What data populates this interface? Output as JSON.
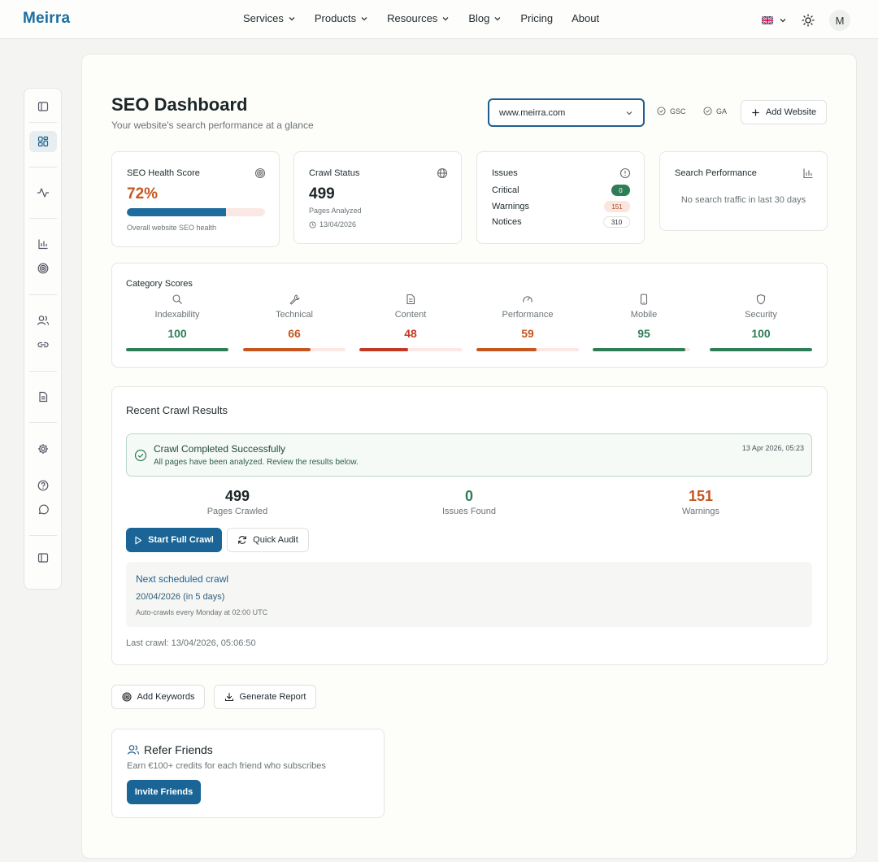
{
  "brand": "Meirra",
  "nav": {
    "items": [
      {
        "label": "Services",
        "has_dropdown": true
      },
      {
        "label": "Products",
        "has_dropdown": true
      },
      {
        "label": "Resources",
        "has_dropdown": true
      },
      {
        "label": "Blog",
        "has_dropdown": true
      },
      {
        "label": "Pricing",
        "has_dropdown": false
      },
      {
        "label": "About",
        "has_dropdown": false
      }
    ],
    "avatar_initial": "M",
    "language_icon": "uk-flag-icon",
    "theme_icon": "sun-icon"
  },
  "sidebar": {
    "icons": [
      "sidebar-panel-icon",
      "dashboard-grid-icon",
      "activity-icon",
      "bar-chart-icon",
      "target-icon",
      "users-icon",
      "link-icon",
      "document-icon",
      "settings-icon",
      "help-icon",
      "chat-icon",
      "collapse-panel-icon"
    ],
    "active": "dashboard-grid-icon"
  },
  "header": {
    "title": "SEO Dashboard",
    "subtitle": "Your website's search performance at a glance",
    "site_select": "www.meirra.com",
    "gsc_label": "GSC",
    "ga_label": "GA",
    "add_website_label": "Add Website"
  },
  "health": {
    "title": "SEO Health Score",
    "value": "72%",
    "progress": 0.72,
    "caption": "Overall website SEO health"
  },
  "crawl_status": {
    "title": "Crawl Status",
    "value": "499",
    "caption": "Pages Analyzed",
    "date": "13/04/2026"
  },
  "issues": {
    "title": "Issues",
    "rows": [
      {
        "label": "Critical",
        "count": "0"
      },
      {
        "label": "Warnings",
        "count": "151"
      },
      {
        "label": "Notices",
        "count": "310"
      }
    ]
  },
  "search_perf": {
    "title": "Search Performance",
    "empty_text": "No search traffic in last 30 days"
  },
  "categories": {
    "title": "Category Scores",
    "items": [
      {
        "name": "Indexability",
        "value": "100",
        "score": 100,
        "color": "#2f7d57",
        "icon": "search-icon"
      },
      {
        "name": "Technical",
        "value": "66",
        "score": 66,
        "color": "#c5561f",
        "icon": "wrench-icon"
      },
      {
        "name": "Content",
        "value": "48",
        "score": 48,
        "color": "#c23a24",
        "icon": "file-text-icon"
      },
      {
        "name": "Performance",
        "value": "59",
        "score": 59,
        "color": "#c5561f",
        "icon": "gauge-icon"
      },
      {
        "name": "Mobile",
        "value": "95",
        "score": 95,
        "color": "#2f7d57",
        "icon": "smartphone-icon"
      },
      {
        "name": "Security",
        "value": "100",
        "score": 100,
        "color": "#2f7d57",
        "icon": "shield-icon"
      }
    ]
  },
  "crawl": {
    "title": "Recent Crawl Results",
    "banner_title": "Crawl Completed Successfully",
    "banner_text": "All pages have been analyzed. Review the results below.",
    "banner_time": "13 Apr 2026, 05:23",
    "stats": [
      {
        "value": "499",
        "label": "Pages Crawled",
        "color": "#1c2528"
      },
      {
        "value": "0",
        "label": "Issues Found",
        "color": "#2f7d57"
      },
      {
        "value": "151",
        "label": "Warnings",
        "color": "#c5561f"
      }
    ],
    "start_label": "Start Full Crawl",
    "audit_label": "Quick Audit",
    "next_title": "Next scheduled crawl",
    "next_date": "20/04/2026 (in 5 days)",
    "next_note": "Auto-crawls every Monday at 02:00 UTC",
    "last_crawl": "Last crawl: 13/04/2026, 05:06:50"
  },
  "actions": {
    "keywords_label": "Add Keywords",
    "report_label": "Generate Report"
  },
  "refer": {
    "title": "Refer Friends",
    "text": "Earn €100+ credits for each friend who subscribes",
    "button": "Invite Friends"
  },
  "colors": {
    "brand": "#1a6ea0",
    "primary_button": "#1a6596",
    "success": "#2f7d57",
    "warning": "#c5561f",
    "danger": "#c23a24"
  }
}
